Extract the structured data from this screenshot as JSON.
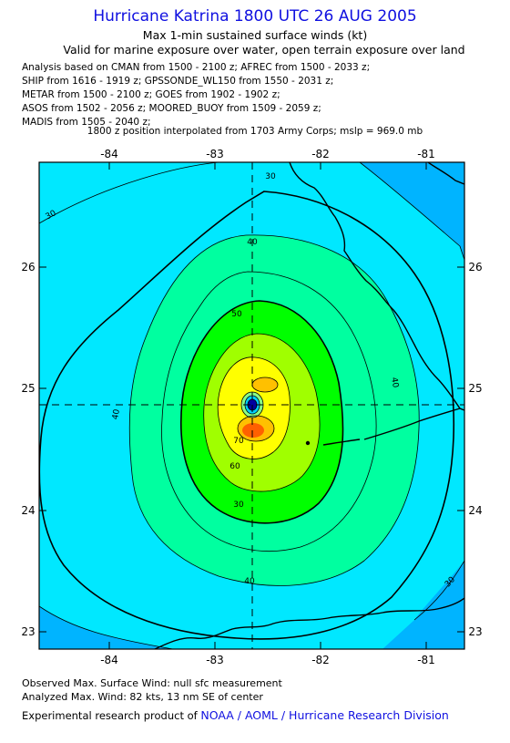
{
  "header": {
    "title": "Hurricane Katrina 1800 UTC 26 AUG 2005",
    "subtitle": "Max 1-min sustained surface winds (kt)",
    "validity": "Valid for marine exposure over water, open terrain exposure over land",
    "analysis_lines": [
      "Analysis based on  CMAN from 1500 - 2100 z;  AFREC from 1500 - 2033 z;",
      "SHIP from 1616 - 1919 z;  GPSSONDE_WL150 from 1550 - 2031 z;",
      "METAR from 1500 - 2100 z;  GOES from 1902 - 1902 z;",
      "ASOS from 1502 - 2056 z;  MOORED_BUOY from 1509 - 2059 z;",
      "MADIS from 1505 - 2040 z;"
    ],
    "interpolation_note": "1800 z position interpolated from 1703 Army Corps; mslp = 969.0 mb"
  },
  "map": {
    "lon_ticks": [
      "-84",
      "-83",
      "-82",
      "-81"
    ],
    "lat_ticks": [
      "26",
      "25",
      "24",
      "23"
    ],
    "center": {
      "lon": -82.65,
      "lat": 24.85
    },
    "contour_labels": [
      "30",
      "40",
      "50",
      "60",
      "70",
      "30",
      "40",
      "40",
      "40",
      "30",
      "30"
    ],
    "colors": {
      "band_lt30": "#00b4ff",
      "band_30_40": "#00e8ff",
      "band_40_50": "#00ffa0",
      "band_50_60": "#00ff00",
      "band_60_70": "#a0ff00",
      "band_70_80": "#ffff00",
      "band_80_90": "#ffc000",
      "band_90plus": "#ff6000",
      "eye": "#0000a0"
    }
  },
  "footer": {
    "observed": "Observed Max. Surface Wind: null sfc measurement",
    "analyzed": "Analyzed Max. Wind: 82 kts, 13 nm SE of center",
    "credit_prefix": "Experimental research product of",
    "organization": "NOAA / AOML / Hurricane Research Division"
  }
}
